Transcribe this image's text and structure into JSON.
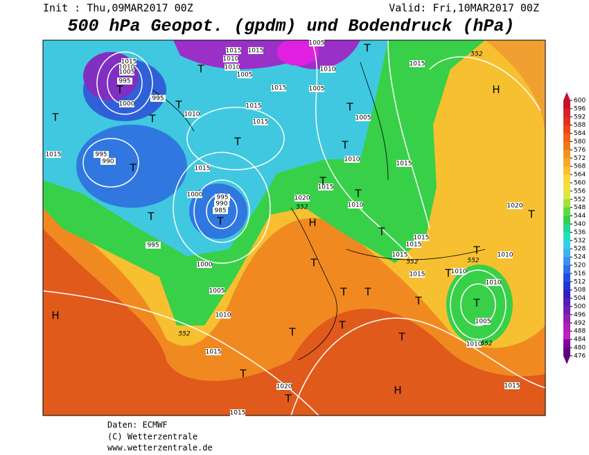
{
  "header": {
    "init": "Init : Thu,09MAR2017 00Z",
    "valid": "Valid: Fri,10MAR2017 00Z",
    "title": "500 hPa Geopot. (gpdm) und Bodendruck (hPa)"
  },
  "map": {
    "isobar_labels": [
      1015,
      1010,
      1005,
      995,
      1000,
      995,
      1010,
      1015,
      995,
      990,
      1015,
      1000,
      995,
      990,
      985,
      995,
      1000,
      1005,
      1010,
      1015,
      1020,
      1015,
      1005,
      1010,
      1005,
      1015,
      1015,
      1015,
      1005,
      1010,
      1015,
      1015,
      1010,
      1020,
      1015,
      1015,
      1015,
      1015,
      1015,
      1010,
      1010,
      1010,
      1005,
      1010,
      1020,
      1015,
      1015,
      1015,
      1010,
      1010,
      1005
    ],
    "contour_labels": [
      552,
      552,
      552,
      552,
      552,
      552
    ],
    "pressure_centers": [
      "H",
      "H",
      "H",
      "H",
      "T",
      "T",
      "T",
      "T",
      "T",
      "T",
      "T",
      "T",
      "T",
      "T",
      "T",
      "T",
      "T",
      "T",
      "T",
      "T",
      "T",
      "T",
      "T",
      "T",
      "T",
      "T",
      "T",
      "T",
      "T",
      "T",
      "T",
      "T"
    ]
  },
  "colorbar": {
    "ticks": [
      600,
      596,
      592,
      588,
      584,
      580,
      576,
      572,
      568,
      564,
      560,
      556,
      552,
      548,
      544,
      540,
      536,
      532,
      528,
      524,
      520,
      516,
      512,
      508,
      504,
      500,
      496,
      492,
      488,
      484,
      480,
      476
    ],
    "colors": [
      "#c8102e",
      "#d8202a",
      "#e03020",
      "#e84818",
      "#ee6018",
      "#f07818",
      "#f49020",
      "#f6a828",
      "#f8c030",
      "#f8d838",
      "#f0e040",
      "#d8e840",
      "#a0e040",
      "#60d840",
      "#30d050",
      "#20d890",
      "#20e0c0",
      "#30d0e8",
      "#40b0f0",
      "#4090f0",
      "#3070e8",
      "#2050e0",
      "#2038d0",
      "#3020c0",
      "#5020b8",
      "#7020b0",
      "#9020b0",
      "#b020b0",
      "#c020c0",
      "#8000a0",
      "#600080"
    ]
  },
  "footer": {
    "source": "Daten: ECMWF",
    "copyright": "(C) Wetterzentrale",
    "url": "www.wetterzentrale.de"
  }
}
